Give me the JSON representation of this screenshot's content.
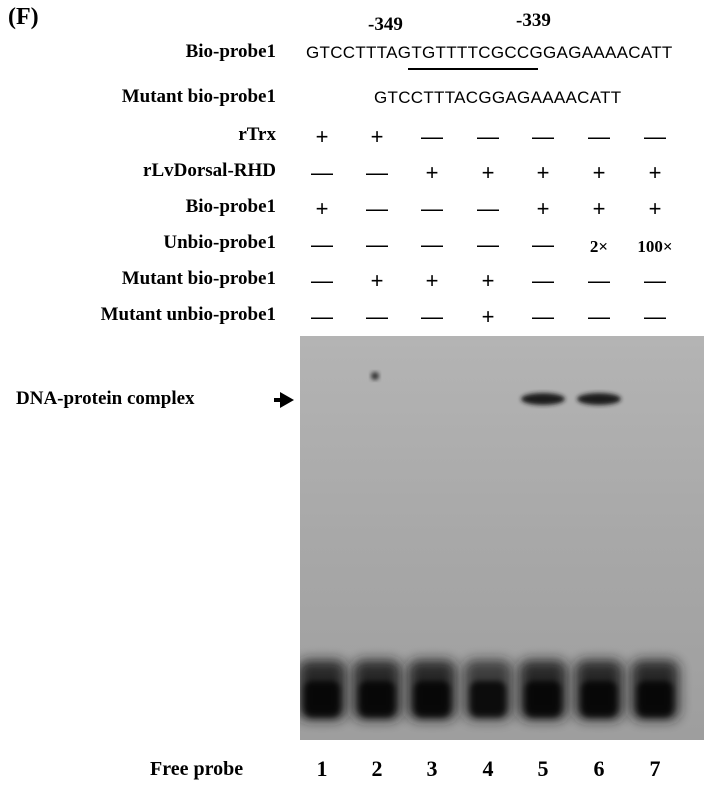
{
  "panel_label": "(F)",
  "positions": [
    "-349",
    "-339"
  ],
  "sequences": {
    "bio_probe1": {
      "label": "Bio-probe1",
      "sequence": "GTCCTTTAGTGTTTTCGCCGGAGAAAACATT"
    },
    "mutant_bio_probe1": {
      "label": "Mutant bio-probe1",
      "sequence": "GTCCTTTACGGAGAAAACATT"
    }
  },
  "conditions": [
    {
      "label": "rTrx",
      "marks": [
        "+",
        "+",
        "—",
        "—",
        "—",
        "—",
        "—"
      ]
    },
    {
      "label": "rLvDorsal-RHD",
      "marks": [
        "—",
        "—",
        "+",
        "+",
        "+",
        "+",
        "+"
      ]
    },
    {
      "label": "Bio-probe1",
      "marks": [
        "+",
        "—",
        "—",
        "—",
        "+",
        "+",
        "+"
      ]
    },
    {
      "label": "Unbio-probe1",
      "marks": [
        "—",
        "—",
        "—",
        "—",
        "—",
        "2×",
        "100×"
      ]
    },
    {
      "label": "Mutant bio-probe1",
      "marks": [
        "—",
        "+",
        "+",
        "+",
        "—",
        "—",
        "—"
      ]
    },
    {
      "label": "Mutant unbio-probe1",
      "marks": [
        "—",
        "—",
        "—",
        "+",
        "—",
        "—",
        "—"
      ]
    }
  ],
  "gel": {
    "complex_label": "DNA-protein complex",
    "free_probe_label": "Free probe",
    "lanes": [
      "1",
      "2",
      "3",
      "4",
      "5",
      "6",
      "7"
    ],
    "complex_band_lanes": [
      5,
      6
    ],
    "background_color": "#a9a9a9",
    "band_color": "#1a1a1a"
  }
}
